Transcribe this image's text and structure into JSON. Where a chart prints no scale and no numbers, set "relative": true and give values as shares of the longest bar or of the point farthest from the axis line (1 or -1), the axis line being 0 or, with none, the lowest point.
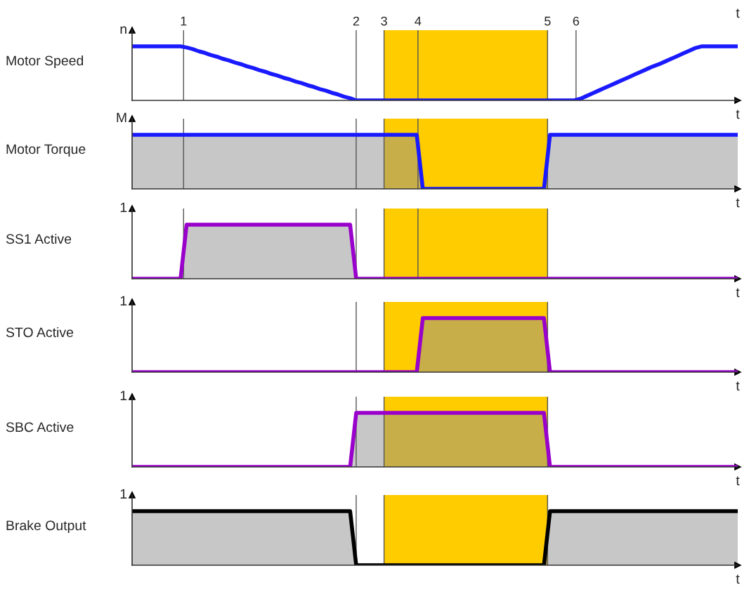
{
  "chart_data": [
    {
      "type": "line",
      "title": "Motor Speed",
      "ylabel": "n",
      "xlabel": "t",
      "relative": true,
      "annotations": [
        "1",
        "2",
        "3",
        "4",
        "5",
        "6",
        "t"
      ],
      "categories": [
        null,
        null,
        null,
        null,
        null,
        null,
        null,
        null,
        null,
        null,
        null,
        null,
        null,
        null,
        null,
        null,
        null,
        null,
        null,
        null,
        null,
        null,
        null,
        null,
        null,
        null,
        null,
        null,
        null,
        null,
        null,
        null,
        null,
        null,
        null,
        null,
        null,
        null,
        null,
        null,
        null,
        null,
        null,
        null,
        null,
        null,
        null,
        null,
        null,
        null,
        null,
        null,
        null,
        null,
        null,
        null,
        null,
        null,
        null,
        null,
        null,
        null,
        null,
        null,
        null,
        null,
        null,
        null,
        null,
        null,
        null,
        null,
        null,
        null,
        null,
        null,
        null,
        null,
        null,
        null,
        null,
        null,
        null,
        null,
        null,
        null,
        null,
        null,
        null,
        null,
        null,
        null,
        null,
        null,
        null,
        null,
        null,
        null,
        null,
        null,
        null
      ],
      "series": [
        {
          "color": "#1a1aff",
          "values": [
            1,
            1,
            1,
            1,
            1,
            1,
            1,
            1,
            1,
            0.98,
            0.95,
            0.91,
            0.88,
            0.84,
            0.81,
            0.77,
            0.74,
            0.7,
            0.67,
            0.63,
            0.6,
            0.56,
            0.53,
            0.49,
            0.46,
            0.42,
            0.39,
            0.35,
            0.32,
            0.28,
            0.25,
            0.21,
            0.18,
            0.14,
            0.11,
            0.07,
            0.04,
            0,
            0,
            0,
            0,
            0,
            0,
            0,
            0,
            0,
            0,
            0,
            0,
            0,
            0,
            0,
            0,
            0,
            0,
            0,
            0,
            0,
            0,
            0,
            0,
            0,
            0,
            0,
            0,
            0,
            0,
            0,
            0,
            0,
            0,
            0,
            0,
            0,
            0.03,
            0.08,
            0.13,
            0.18,
            0.23,
            0.28,
            0.33,
            0.38,
            0.43,
            0.48,
            0.53,
            0.58,
            0.63,
            0.67,
            0.72,
            0.77,
            0.82,
            0.87,
            0.92,
            0.97,
            1,
            1,
            1,
            1,
            1,
            1,
            1
          ]
        }
      ]
    },
    {
      "type": "area",
      "title": "Motor Torque",
      "ylabel": "M",
      "xlabel": "t",
      "relative": true,
      "categories": [
        null,
        null,
        null,
        null,
        null,
        null,
        null,
        null,
        null,
        null,
        null,
        null,
        null,
        null,
        null,
        null,
        null,
        null,
        null,
        null,
        null,
        null,
        null,
        null,
        null,
        null,
        null,
        null,
        null,
        null,
        null,
        null,
        null,
        null,
        null,
        null,
        null,
        null,
        null,
        null,
        null,
        null,
        null,
        null,
        null,
        null,
        null,
        null,
        null,
        null,
        null,
        null,
        null,
        null,
        null,
        null,
        null,
        null,
        null,
        null,
        null,
        null,
        null,
        null,
        null,
        null,
        null,
        null,
        null,
        null,
        null,
        null,
        null,
        null,
        null,
        null,
        null,
        null,
        null,
        null,
        null,
        null,
        null,
        null,
        null,
        null,
        null,
        null,
        null,
        null,
        null,
        null,
        null,
        null,
        null,
        null,
        null,
        null,
        null,
        null,
        null
      ],
      "series": [
        {
          "color": "#1a1aff",
          "values": [
            1,
            1,
            1,
            1,
            1,
            1,
            1,
            1,
            1,
            1,
            1,
            1,
            1,
            1,
            1,
            1,
            1,
            1,
            1,
            1,
            1,
            1,
            1,
            1,
            1,
            1,
            1,
            1,
            1,
            1,
            1,
            1,
            1,
            1,
            1,
            1,
            1,
            1,
            1,
            1,
            1,
            1,
            1,
            1,
            1,
            1,
            1,
            1,
            0,
            0,
            0,
            0,
            0,
            0,
            0,
            0,
            0,
            0,
            0,
            0,
            0,
            0,
            0,
            0,
            0,
            0,
            0,
            0,
            0,
            1,
            1,
            1,
            1,
            1,
            1,
            1,
            1,
            1,
            1,
            1,
            1,
            1,
            1,
            1,
            1,
            1,
            1,
            1,
            1,
            1,
            1,
            1,
            1,
            1,
            1,
            1,
            1,
            1,
            1,
            1,
            1
          ]
        }
      ]
    },
    {
      "type": "area",
      "title": "SS1 Active",
      "ylabel": "1",
      "xlabel": "t",
      "relative": true,
      "categories": [
        null,
        null,
        null,
        null,
        null,
        null,
        null,
        null,
        null,
        null,
        null,
        null,
        null,
        null,
        null,
        null,
        null,
        null,
        null,
        null,
        null,
        null,
        null,
        null,
        null,
        null,
        null,
        null,
        null,
        null,
        null,
        null,
        null,
        null,
        null,
        null,
        null,
        null,
        null,
        null,
        null,
        null,
        null,
        null,
        null,
        null,
        null,
        null,
        null,
        null,
        null,
        null,
        null,
        null,
        null,
        null,
        null,
        null,
        null,
        null,
        null,
        null,
        null,
        null,
        null,
        null,
        null,
        null,
        null,
        null,
        null,
        null,
        null,
        null,
        null,
        null,
        null,
        null,
        null,
        null,
        null,
        null,
        null,
        null,
        null,
        null,
        null,
        null,
        null,
        null,
        null,
        null,
        null,
        null,
        null,
        null,
        null,
        null,
        null,
        null,
        null
      ],
      "series": [
        {
          "color": "#9900cc",
          "values": [
            0,
            0,
            0,
            0,
            0,
            0,
            0,
            0,
            0,
            1,
            1,
            1,
            1,
            1,
            1,
            1,
            1,
            1,
            1,
            1,
            1,
            1,
            1,
            1,
            1,
            1,
            1,
            1,
            1,
            1,
            1,
            1,
            1,
            1,
            1,
            1,
            1,
            0,
            0,
            0,
            0,
            0,
            0,
            0,
            0,
            0,
            0,
            0,
            0,
            0,
            0,
            0,
            0,
            0,
            0,
            0,
            0,
            0,
            0,
            0,
            0,
            0,
            0,
            0,
            0,
            0,
            0,
            0,
            0,
            0,
            0,
            0,
            0,
            0,
            0,
            0,
            0,
            0,
            0,
            0,
            0,
            0,
            0,
            0,
            0,
            0,
            0,
            0,
            0,
            0,
            0,
            0,
            0,
            0,
            0,
            0,
            0,
            0,
            0,
            0,
            0
          ]
        }
      ]
    },
    {
      "type": "area",
      "title": "STO Active",
      "ylabel": "1",
      "xlabel": "t",
      "relative": true,
      "categories": [
        null,
        null,
        null,
        null,
        null,
        null,
        null,
        null,
        null,
        null,
        null,
        null,
        null,
        null,
        null,
        null,
        null,
        null,
        null,
        null,
        null,
        null,
        null,
        null,
        null,
        null,
        null,
        null,
        null,
        null,
        null,
        null,
        null,
        null,
        null,
        null,
        null,
        null,
        null,
        null,
        null,
        null,
        null,
        null,
        null,
        null,
        null,
        null,
        null,
        null,
        null,
        null,
        null,
        null,
        null,
        null,
        null,
        null,
        null,
        null,
        null,
        null,
        null,
        null,
        null,
        null,
        null,
        null,
        null,
        null,
        null,
        null,
        null,
        null,
        null,
        null,
        null,
        null,
        null,
        null,
        null,
        null,
        null,
        null,
        null,
        null,
        null,
        null,
        null,
        null,
        null,
        null,
        null,
        null,
        null,
        null,
        null,
        null,
        null,
        null,
        null
      ],
      "series": [
        {
          "color": "#9900cc",
          "values": [
            0,
            0,
            0,
            0,
            0,
            0,
            0,
            0,
            0,
            0,
            0,
            0,
            0,
            0,
            0,
            0,
            0,
            0,
            0,
            0,
            0,
            0,
            0,
            0,
            0,
            0,
            0,
            0,
            0,
            0,
            0,
            0,
            0,
            0,
            0,
            0,
            0,
            0,
            0,
            0,
            0,
            0,
            0,
            0,
            0,
            0,
            0,
            0,
            1,
            1,
            1,
            1,
            1,
            1,
            1,
            1,
            1,
            1,
            1,
            1,
            1,
            1,
            1,
            1,
            1,
            1,
            1,
            1,
            1,
            0,
            0,
            0,
            0,
            0,
            0,
            0,
            0,
            0,
            0,
            0,
            0,
            0,
            0,
            0,
            0,
            0,
            0,
            0,
            0,
            0,
            0,
            0,
            0,
            0,
            0,
            0,
            0,
            0,
            0,
            0,
            0
          ]
        }
      ]
    },
    {
      "type": "area",
      "title": "SBC Active",
      "ylabel": "1",
      "xlabel": "t",
      "relative": true,
      "categories": [
        null,
        null,
        null,
        null,
        null,
        null,
        null,
        null,
        null,
        null,
        null,
        null,
        null,
        null,
        null,
        null,
        null,
        null,
        null,
        null,
        null,
        null,
        null,
        null,
        null,
        null,
        null,
        null,
        null,
        null,
        null,
        null,
        null,
        null,
        null,
        null,
        null,
        null,
        null,
        null,
        null,
        null,
        null,
        null,
        null,
        null,
        null,
        null,
        null,
        null,
        null,
        null,
        null,
        null,
        null,
        null,
        null,
        null,
        null,
        null,
        null,
        null,
        null,
        null,
        null,
        null,
        null,
        null,
        null,
        null,
        null,
        null,
        null,
        null,
        null,
        null,
        null,
        null,
        null,
        null,
        null,
        null,
        null,
        null,
        null,
        null,
        null,
        null,
        null,
        null,
        null,
        null,
        null,
        null,
        null,
        null,
        null,
        null,
        null,
        null,
        null
      ],
      "series": [
        {
          "color": "#9900cc",
          "values": [
            0,
            0,
            0,
            0,
            0,
            0,
            0,
            0,
            0,
            0,
            0,
            0,
            0,
            0,
            0,
            0,
            0,
            0,
            0,
            0,
            0,
            0,
            0,
            0,
            0,
            0,
            0,
            0,
            0,
            0,
            0,
            0,
            0,
            0,
            0,
            0,
            0,
            1,
            1,
            1,
            1,
            1,
            1,
            1,
            1,
            1,
            1,
            1,
            1,
            1,
            1,
            1,
            1,
            1,
            1,
            1,
            1,
            1,
            1,
            1,
            1,
            1,
            1,
            1,
            1,
            1,
            1,
            1,
            1,
            0,
            0,
            0,
            0,
            0,
            0,
            0,
            0,
            0,
            0,
            0,
            0,
            0,
            0,
            0,
            0,
            0,
            0,
            0,
            0,
            0,
            0,
            0,
            0,
            0,
            0,
            0,
            0,
            0,
            0,
            0,
            0
          ]
        }
      ]
    },
    {
      "type": "area",
      "title": "Brake Output",
      "ylabel": "1",
      "xlabel": "t",
      "relative": true,
      "categories": [
        null,
        null,
        null,
        null,
        null,
        null,
        null,
        null,
        null,
        null,
        null,
        null,
        null,
        null,
        null,
        null,
        null,
        null,
        null,
        null,
        null,
        null,
        null,
        null,
        null,
        null,
        null,
        null,
        null,
        null,
        null,
        null,
        null,
        null,
        null,
        null,
        null,
        null,
        null,
        null,
        null,
        null,
        null,
        null,
        null,
        null,
        null,
        null,
        null,
        null,
        null,
        null,
        null,
        null,
        null,
        null,
        null,
        null,
        null,
        null,
        null,
        null,
        null,
        null,
        null,
        null,
        null,
        null,
        null,
        null,
        null,
        null,
        null,
        null,
        null,
        null,
        null,
        null,
        null,
        null,
        null,
        null,
        null,
        null,
        null,
        null,
        null,
        null,
        null,
        null,
        null,
        null,
        null,
        null,
        null,
        null,
        null,
        null,
        null,
        null,
        null
      ],
      "series": [
        {
          "color": "#000000",
          "values": [
            1,
            1,
            1,
            1,
            1,
            1,
            1,
            1,
            1,
            1,
            1,
            1,
            1,
            1,
            1,
            1,
            1,
            1,
            1,
            1,
            1,
            1,
            1,
            1,
            1,
            1,
            1,
            1,
            1,
            1,
            1,
            1,
            1,
            1,
            1,
            1,
            1,
            0,
            0,
            0,
            0,
            0,
            0,
            0,
            0,
            0,
            0,
            0,
            0,
            0,
            0,
            0,
            0,
            0,
            0,
            0,
            0,
            0,
            0,
            0,
            0,
            0,
            0,
            0,
            0,
            0,
            0,
            0,
            0,
            1,
            1,
            1,
            1,
            1,
            1,
            1,
            1,
            1,
            1,
            1,
            1,
            1,
            1,
            1,
            1,
            1,
            1,
            1,
            1,
            1,
            1,
            1,
            1,
            1,
            1,
            1,
            1,
            1,
            1,
            1,
            1
          ]
        }
      ]
    }
  ]
}
